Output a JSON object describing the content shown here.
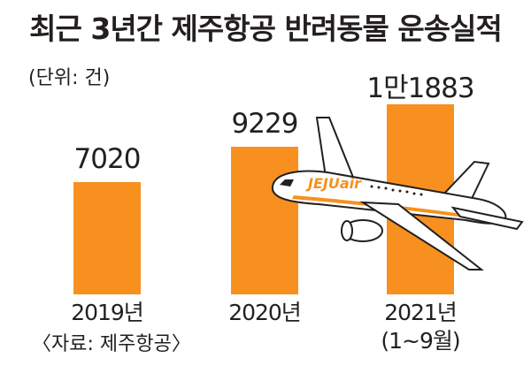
{
  "title": "최근 3년간 제주항공 반려동물 운송실적",
  "unit": "(단위: 건)",
  "source": "〈자료: 제주항공〉",
  "plane_logo": "JEJUair",
  "colors": {
    "bar": "#f7901e",
    "text": "#231f20"
  },
  "chart_data": {
    "type": "bar",
    "categories": [
      "2019년",
      "2020년",
      "2021년"
    ],
    "category_notes": [
      "",
      "",
      "(1~9월)"
    ],
    "values": [
      7020,
      9229,
      11883
    ],
    "value_labels": [
      "7020",
      "9229",
      "1만1883"
    ],
    "ylim": [
      0,
      12500
    ],
    "grid": false,
    "legend": "none"
  }
}
